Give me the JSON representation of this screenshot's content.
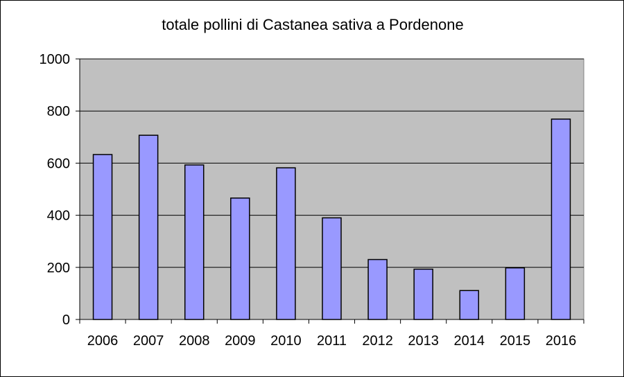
{
  "chart_data": {
    "type": "bar",
    "title": "totale pollini di Castanea sativa a Pordenone",
    "xlabel": "",
    "ylabel": "",
    "categories": [
      "2006",
      "2007",
      "2008",
      "2009",
      "2010",
      "2011",
      "2012",
      "2013",
      "2014",
      "2015",
      "2016"
    ],
    "values": [
      633,
      707,
      593,
      466,
      582,
      390,
      230,
      193,
      111,
      198,
      769
    ],
    "ylim": [
      0,
      1000
    ],
    "yticks": [
      0,
      200,
      400,
      600,
      800,
      1000
    ],
    "grid": true,
    "legend": "none",
    "colors": {
      "bar_fill": "#9999ff",
      "bar_stroke": "#000000",
      "plot_background": "#c0c0c0",
      "gridline": "#000000"
    }
  }
}
